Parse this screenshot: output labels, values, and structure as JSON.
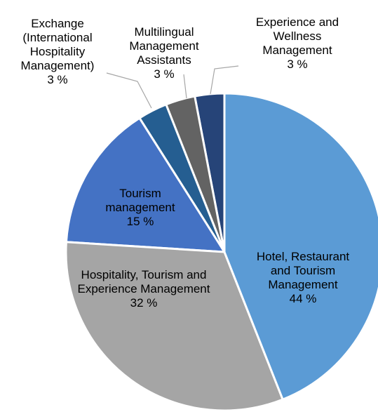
{
  "chart_data": {
    "type": "pie",
    "categories": [
      "Hotel, Restaurant and Tourism Management",
      "Hospitality, Tourism and Experience Management",
      "Tourism management",
      "Exchange (International Hospitality Management)",
      "Multilingual Management Assistants",
      "Experience and Wellness Management"
    ],
    "values": [
      44,
      32,
      15,
      3,
      3,
      3
    ],
    "value_labels": [
      "44 %",
      "32 %",
      "15 %",
      "3 %",
      "3 %",
      "3 %"
    ],
    "colors": [
      "#5b9bd5",
      "#a5a5a5",
      "#4472c4",
      "#255e91",
      "#636363",
      "#264478"
    ]
  }
}
